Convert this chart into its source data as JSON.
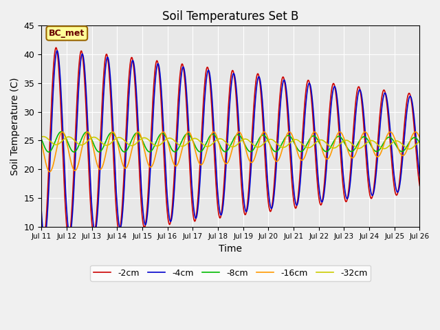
{
  "title": "Soil Temperatures Set B",
  "xlabel": "Time",
  "ylabel": "Soil Temperature (C)",
  "annotation": "BC_met",
  "ylim": [
    10,
    45
  ],
  "xlim": [
    0,
    360
  ],
  "fig_bg": "#f0f0f0",
  "ax_bg": "#e8e8e8",
  "series_colors": {
    "-2cm": "#cc0000",
    "-4cm": "#0000cc",
    "-8cm": "#00bb00",
    "-16cm": "#ff9900",
    "-32cm": "#cccc00"
  },
  "xtick_positions": [
    0,
    24,
    48,
    72,
    96,
    120,
    144,
    168,
    192,
    216,
    240,
    264,
    288,
    312,
    336,
    360
  ],
  "xtick_labels": [
    "Jul 11",
    "Jul 12",
    "Jul 13",
    "Jul 14",
    "Jul 15",
    "Jul 16",
    "Jul 17",
    "Jul 18",
    "Jul 19",
    "Jul 20",
    "Jul 21",
    "Jul 22",
    "Jul 23",
    "Jul 24",
    "Jul 25",
    "Jul 26"
  ],
  "ytick_positions": [
    10,
    15,
    20,
    25,
    30,
    35,
    40,
    45
  ],
  "legend_labels": [
    "-2cm",
    "-4cm",
    "-8cm",
    "-16cm",
    "-32cm"
  ]
}
